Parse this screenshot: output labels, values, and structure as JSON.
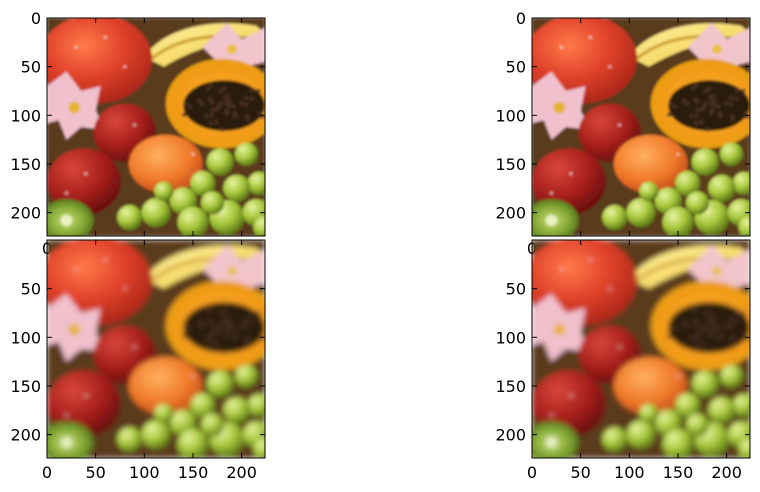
{
  "chart_data": [
    {
      "type": "image",
      "subplot": "top-left",
      "content": "fruit photo (peach, bananas, lily, papaya, apples, apricot, kiwi, green grapes)",
      "xlim": [
        0,
        224
      ],
      "ylim": [
        224,
        0
      ],
      "xticks": [
        0,
        50,
        100,
        150,
        200
      ],
      "yticks": [
        0,
        50,
        100,
        150,
        200
      ],
      "show_xtick_labels": "partial",
      "visible_xtick_labels": [
        "0"
      ],
      "show_ytick_labels": true
    },
    {
      "type": "image",
      "subplot": "top-right",
      "content": "fruit photo (peach, bananas, lily, papaya, apples, apricot, kiwi, green grapes)",
      "xlim": [
        0,
        224
      ],
      "ylim": [
        224,
        0
      ],
      "xticks": [
        0,
        50,
        100,
        150,
        200
      ],
      "yticks": [
        0,
        50,
        100,
        150,
        200
      ],
      "show_xtick_labels": "partial",
      "visible_xtick_labels": [
        "0"
      ],
      "show_ytick_labels": true
    },
    {
      "type": "image",
      "subplot": "bottom-left",
      "content": "fruit photo, blurred reconstruction",
      "xlim": [
        0,
        224
      ],
      "ylim": [
        224,
        0
      ],
      "xticks": [
        0,
        50,
        100,
        150,
        200
      ],
      "yticks": [
        50,
        100,
        150,
        200
      ],
      "show_xtick_labels": true,
      "show_ytick_labels": true
    },
    {
      "type": "image",
      "subplot": "bottom-right",
      "content": "fruit photo, blurred reconstruction",
      "xlim": [
        0,
        224
      ],
      "ylim": [
        224,
        0
      ],
      "xticks": [
        0,
        50,
        100,
        150,
        200
      ],
      "yticks": [
        50,
        100,
        150,
        200
      ],
      "show_xtick_labels": true,
      "show_ytick_labels": true
    }
  ],
  "tick_labels": {
    "x": [
      "0",
      "50",
      "100",
      "150",
      "200"
    ],
    "y": [
      "0",
      "50",
      "100",
      "150",
      "200"
    ]
  }
}
